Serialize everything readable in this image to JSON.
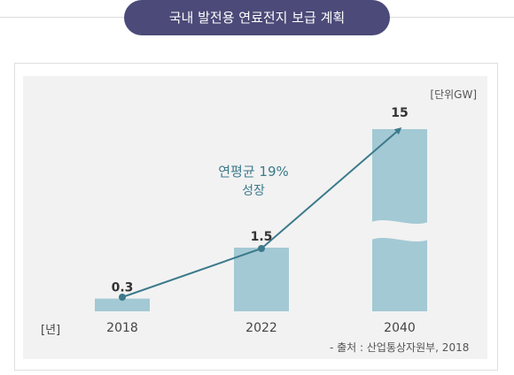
{
  "header": {
    "title": "국내 발전용 연료전지 보급 계획"
  },
  "chart_data": {
    "type": "bar",
    "categories": [
      "2018",
      "2022",
      "2040"
    ],
    "values": [
      0.3,
      1.5,
      15
    ],
    "value_labels": [
      "0.3",
      "1.5",
      "15"
    ],
    "unit": "[단위GW]",
    "xlabel": "[년]",
    "annotation": {
      "line1": "연평균 19%",
      "line2": "성장"
    },
    "axis_break": true,
    "bar_color": "#a3c9d4",
    "line_color": "#3c7a8c",
    "source": "- 출처 : 산업통상자원부, 2018"
  }
}
